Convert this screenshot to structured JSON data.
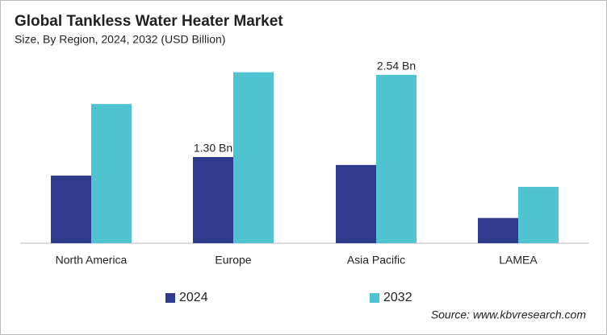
{
  "chart_data": {
    "type": "bar",
    "title": "Global Tankless Water Heater Market",
    "subtitle": "Size, By Region, 2024, 2032 (USD Billion)",
    "categories": [
      "North America",
      "Europe",
      "Asia Pacific",
      "LAMEA"
    ],
    "series": [
      {
        "name": "2024",
        "color": "#2e3a8c",
        "values": [
          1.02,
          1.3,
          1.18,
          0.38
        ],
        "value_labels": [
          null,
          "1.30 Bn",
          null,
          null
        ]
      },
      {
        "name": "2032",
        "color": "#4fc3d0",
        "values": [
          2.1,
          2.58,
          2.54,
          0.85
        ],
        "value_labels": [
          null,
          null,
          "2.54 Bn",
          null
        ]
      }
    ],
    "source": "Source: www.kbvresearch.com"
  }
}
